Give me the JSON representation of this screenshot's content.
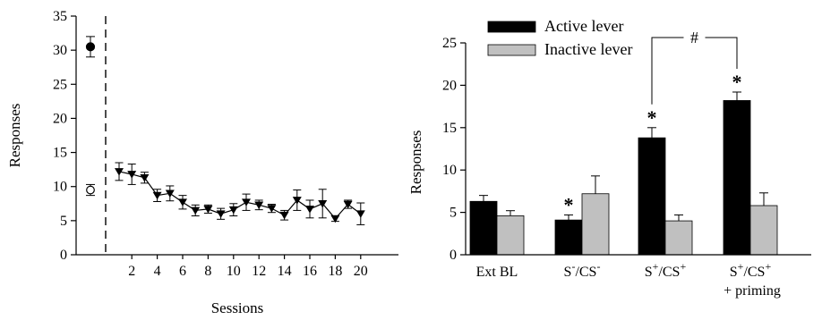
{
  "chart_data": [
    {
      "type": "line",
      "xlabel": "Sessions",
      "ylabel": "Responses",
      "ylim": [
        0,
        35
      ],
      "yticks": [
        0,
        5,
        10,
        15,
        20,
        25,
        30,
        35
      ],
      "xticks": [
        2,
        4,
        6,
        8,
        10,
        12,
        14,
        16,
        18,
        20
      ],
      "grid": false,
      "baseline": {
        "active": {
          "value": 30.5,
          "error": 1.5
        },
        "inactive": {
          "value": 9.5,
          "error": 0.8
        }
      },
      "series": [
        {
          "x": [
            1,
            2,
            3,
            4,
            5,
            6,
            7,
            8,
            9,
            10,
            11,
            12,
            13,
            14,
            15,
            16,
            17,
            18,
            19,
            20
          ],
          "values": [
            12.2,
            11.8,
            11.3,
            8.7,
            9.0,
            7.7,
            6.5,
            6.7,
            6.0,
            6.6,
            7.7,
            7.3,
            6.8,
            5.8,
            8.0,
            6.7,
            7.5,
            5.3,
            7.4,
            6.0
          ],
          "errors": [
            1.3,
            1.5,
            0.8,
            0.9,
            1.1,
            1.0,
            0.8,
            0.6,
            0.8,
            0.9,
            1.2,
            0.7,
            0.6,
            0.7,
            1.5,
            1.3,
            2.1,
            0.4,
            0.6,
            1.6
          ]
        }
      ]
    },
    {
      "type": "bar",
      "ylabel": "Responses",
      "ylim": [
        0,
        25
      ],
      "yticks": [
        0,
        5,
        10,
        15,
        20,
        25
      ],
      "grid": false,
      "legend_position": "top-left",
      "categories": [
        {
          "id": "ext-bl",
          "base": "Ext BL",
          "sup": "",
          "base2": "",
          "sup2": "",
          "line2": ""
        },
        {
          "id": "s-minus",
          "base": "S",
          "sup": "-",
          "base2": "/CS",
          "sup2": "-",
          "line2": ""
        },
        {
          "id": "s-plus",
          "base": "S",
          "sup": "+",
          "base2": "/CS",
          "sup2": "+",
          "line2": ""
        },
        {
          "id": "s-plus-priming",
          "base": "S",
          "sup": "+",
          "base2": "/CS",
          "sup2": "+",
          "line2": "+ priming"
        }
      ],
      "series": [
        {
          "name": "Active lever",
          "color": "#000000",
          "values": [
            6.3,
            4.1,
            13.8,
            18.2
          ],
          "errors": [
            0.7,
            0.6,
            1.2,
            1.0
          ]
        },
        {
          "name": "Inactive lever",
          "color": "#c0c0c0",
          "values": [
            4.6,
            7.2,
            4.0,
            5.8
          ],
          "errors": [
            0.6,
            2.1,
            0.7,
            1.5
          ]
        }
      ],
      "annotations": {
        "significance": [
          {
            "category": 1,
            "series": 0,
            "symbol": "*"
          },
          {
            "category": 2,
            "series": 0,
            "symbol": "*"
          },
          {
            "category": 3,
            "series": 0,
            "symbol": "*"
          }
        ],
        "bracket": {
          "from": 2,
          "to": 3,
          "symbol": "#"
        }
      }
    }
  ]
}
